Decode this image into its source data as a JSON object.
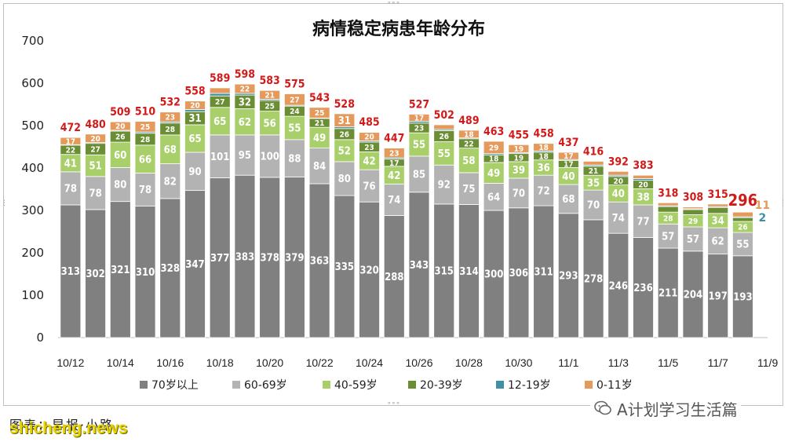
{
  "chart_data": {
    "type": "bar",
    "stacked": true,
    "title": "病情稳定病患年龄分布",
    "ylim": [
      0,
      700
    ],
    "yticks": [
      0,
      100,
      200,
      300,
      400,
      500,
      600,
      700
    ],
    "grid": false,
    "legend_position": "bottom",
    "categories": [
      "10/12",
      "10/13",
      "10/14",
      "10/15",
      "10/16",
      "10/17",
      "10/18",
      "10/19",
      "10/20",
      "10/21",
      "10/22",
      "10/23",
      "10/24",
      "10/25",
      "10/26",
      "10/27",
      "10/28",
      "10/29",
      "10/30",
      "10/31",
      "11/1",
      "11/2",
      "11/3",
      "11/4",
      "11/5",
      "11/6",
      "11/7",
      "11/8",
      "11/9"
    ],
    "xtick_labels": [
      "10/12",
      "",
      "10/14",
      "",
      "10/16",
      "",
      "10/18",
      "",
      "10/20",
      "",
      "10/22",
      "",
      "10/24",
      "",
      "10/26",
      "",
      "10/28",
      "",
      "10/30",
      "",
      "11/1",
      "",
      "11/3",
      "",
      "11/5",
      "",
      "11/7",
      "",
      "11/9"
    ],
    "series": [
      {
        "name": "70岁以上",
        "color": "#808080",
        "labels_shown": true,
        "values": [
          313,
          302,
          321,
          310,
          328,
          347,
          377,
          383,
          378,
          379,
          363,
          335,
          320,
          288,
          343,
          315,
          314,
          300,
          306,
          311,
          293,
          278,
          246,
          236,
          211,
          204,
          197,
          193,
          null
        ]
      },
      {
        "name": "60-69岁",
        "color": "#b3b3b3",
        "labels_shown": true,
        "values": [
          78,
          78,
          80,
          78,
          82,
          90,
          101,
          95,
          100,
          88,
          84,
          80,
          76,
          74,
          85,
          92,
          75,
          64,
          70,
          72,
          68,
          70,
          74,
          77,
          57,
          57,
          62,
          55,
          null
        ]
      },
      {
        "name": "40-59岁",
        "color": "#a9cf6b",
        "labels_shown": true,
        "values": [
          41,
          51,
          60,
          66,
          68,
          65,
          65,
          62,
          56,
          55,
          49,
          52,
          42,
          42,
          55,
          55,
          58,
          49,
          39,
          36,
          40,
          35,
          40,
          38,
          28,
          29,
          34,
          26,
          null
        ]
      },
      {
        "name": "20-39岁",
        "color": "#6b8e35",
        "labels_shown": true,
        "values": [
          22,
          27,
          26,
          28,
          28,
          31,
          27,
          32,
          25,
          24,
          21,
          26,
          23,
          17,
          23,
          26,
          22,
          18,
          19,
          18,
          17,
          21,
          20,
          20,
          13,
          12,
          14,
          9,
          null
        ]
      },
      {
        "name": "12-19岁",
        "color": "#3f8fa5",
        "labels_shown": false,
        "values": [
          1,
          2,
          2,
          3,
          3,
          5,
          6,
          4,
          3,
          2,
          1,
          4,
          3,
          3,
          4,
          3,
          2,
          3,
          2,
          3,
          2,
          3,
          3,
          4,
          2,
          2,
          2,
          2,
          null
        ]
      },
      {
        "name": "0-11岁",
        "color": "#e59a5c",
        "labels_shown": true,
        "values": [
          17,
          20,
          20,
          25,
          23,
          20,
          13,
          22,
          21,
          27,
          25,
          31,
          20,
          23,
          17,
          11,
          18,
          29,
          19,
          18,
          17,
          9,
          9,
          8,
          7,
          4,
          6,
          11,
          null
        ]
      }
    ],
    "totals": [
      472,
      480,
      509,
      510,
      532,
      558,
      589,
      598,
      583,
      575,
      543,
      528,
      485,
      447,
      527,
      502,
      489,
      463,
      455,
      458,
      437,
      416,
      392,
      383,
      318,
      308,
      315,
      296,
      null
    ],
    "highlight_total_index": 27,
    "side_labels": [
      {
        "index": 27,
        "value": "11",
        "color": "#e59a5c"
      },
      {
        "index": 27,
        "value": "2",
        "color": "#3f8fa5"
      }
    ],
    "total_label_color": "#d21a1a"
  },
  "footer": {
    "caption": "图表：早报·小路",
    "watermark": "shicheng.news",
    "wechat_account": "A计划学习生活篇"
  }
}
